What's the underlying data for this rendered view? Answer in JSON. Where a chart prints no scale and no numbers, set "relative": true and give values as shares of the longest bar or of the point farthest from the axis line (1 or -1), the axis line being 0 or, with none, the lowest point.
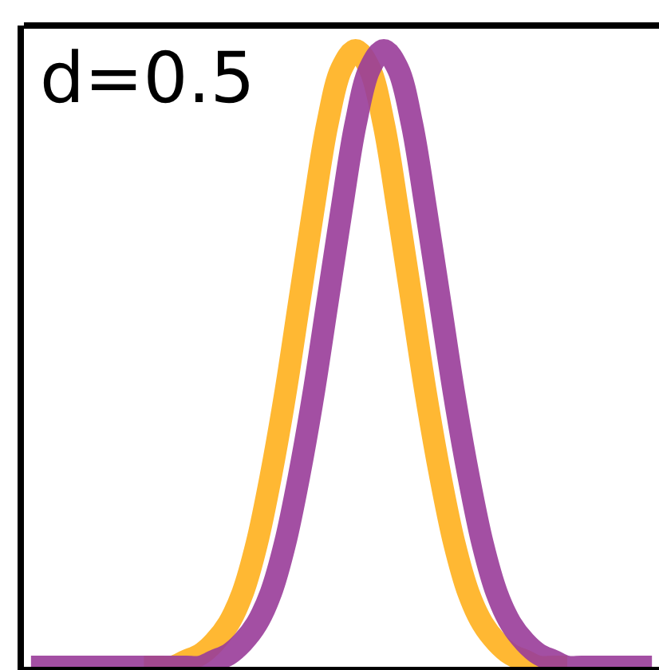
{
  "chart_data": {
    "type": "line",
    "relative": true,
    "marker": "none",
    "line_style": "solid",
    "annotations": [
      "d=0.5"
    ],
    "categories": [
      null,
      null,
      null,
      null,
      null,
      null,
      null,
      null,
      null,
      null,
      null,
      null,
      null,
      null,
      null,
      null,
      null,
      null,
      null,
      null,
      null,
      null,
      null,
      null,
      null,
      null,
      null,
      null,
      null,
      null,
      null,
      null,
      null,
      null,
      null,
      null,
      null,
      null,
      null,
      null,
      null,
      null,
      null,
      null,
      null
    ],
    "series": [
      {
        "color": "#ffb833",
        "values": [
          null,
          null,
          null,
          null,
          null,
          null,
          null,
          null,
          0,
          0,
          0,
          0.01,
          0.02,
          0.04,
          0.07,
          0.12,
          0.2,
          0.31,
          0.44,
          0.59,
          0.74,
          0.88,
          0.97,
          1,
          0.97,
          0.88,
          0.74,
          0.59,
          0.44,
          0.31,
          0.2,
          0.12,
          0.07,
          0.04,
          0.02,
          0.01,
          0,
          0,
          0,
          null,
          null,
          null,
          null,
          null,
          null
        ]
      },
      {
        "color": "#9a3d9a",
        "values": [
          0,
          0,
          0,
          0,
          0,
          0,
          0,
          0,
          0,
          0,
          0,
          0,
          0,
          0.01,
          0.02,
          0.04,
          0.07,
          0.12,
          0.2,
          0.31,
          0.44,
          0.59,
          0.74,
          0.88,
          0.97,
          1,
          0.97,
          0.88,
          0.74,
          0.59,
          0.44,
          0.31,
          0.2,
          0.12,
          0.07,
          0.04,
          0.02,
          0.01,
          0,
          0,
          0,
          0,
          0,
          0,
          0
        ]
      }
    ]
  }
}
